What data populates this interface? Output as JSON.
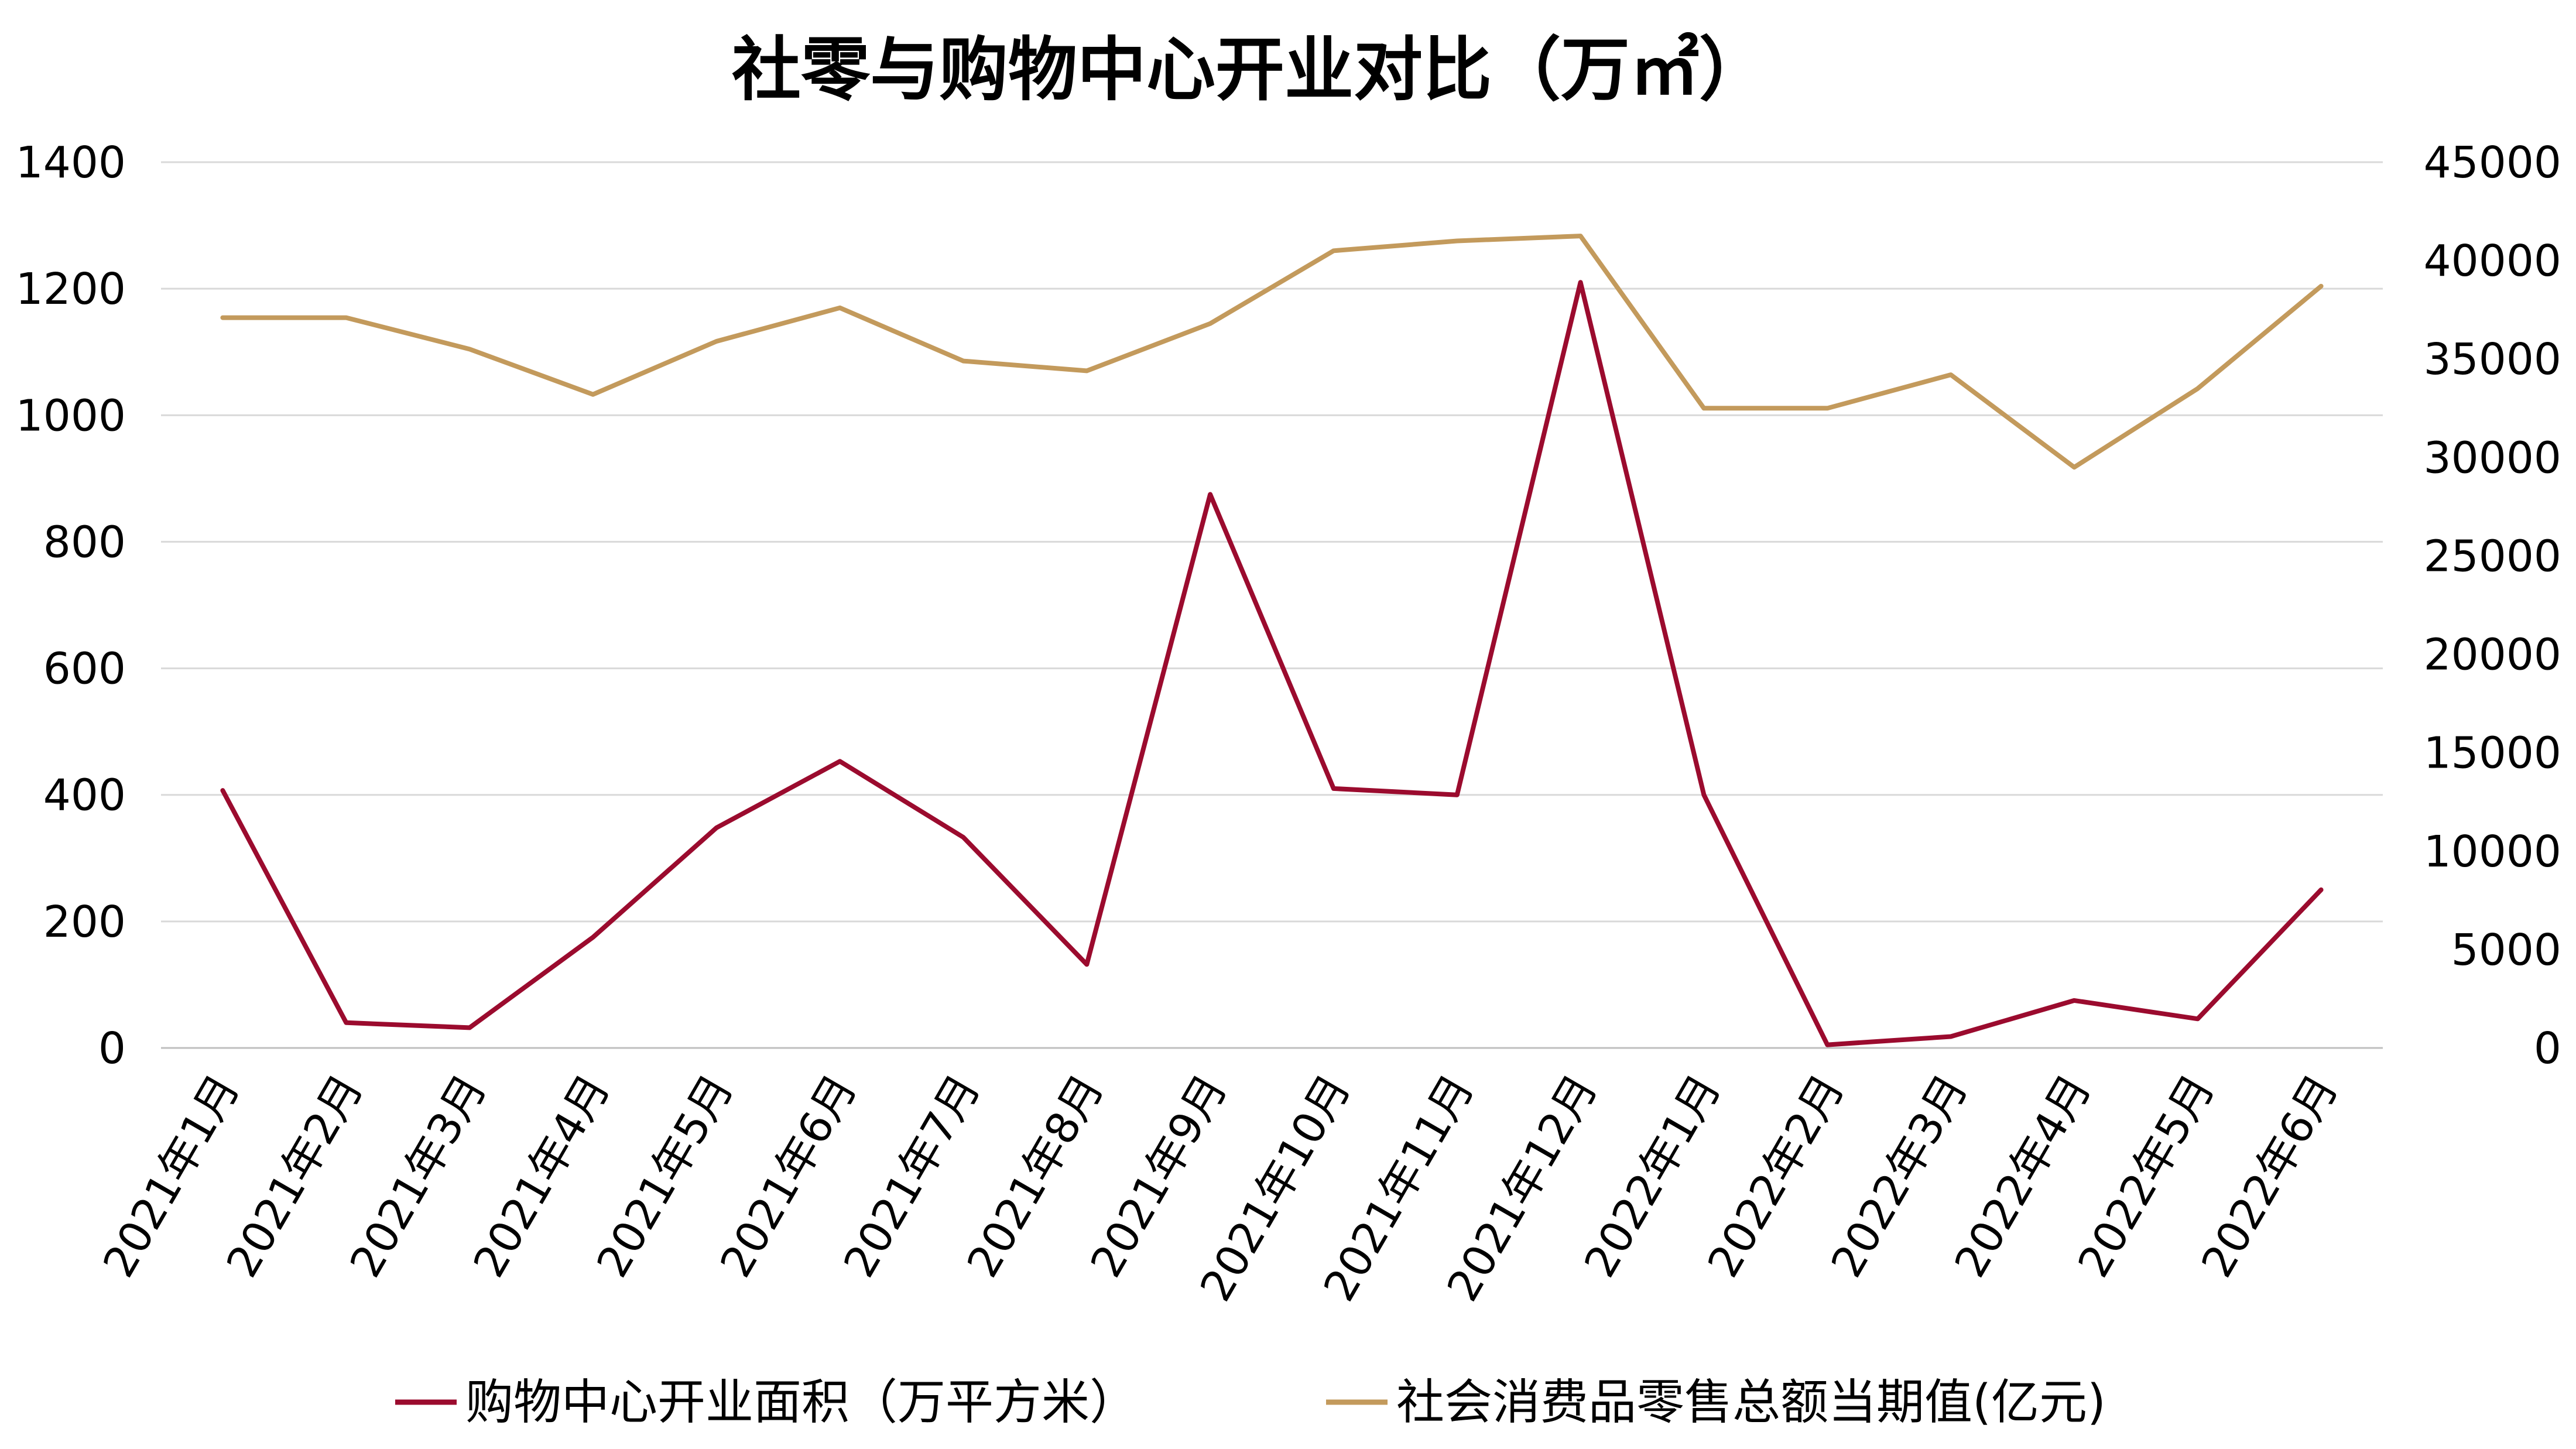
{
  "chart_data": {
    "type": "line",
    "title": "社零与购物中心开业对比（万㎡）",
    "categories": [
      "2021年1月",
      "2021年2月",
      "2021年3月",
      "2021年4月",
      "2021年5月",
      "2021年6月",
      "2021年7月",
      "2021年8月",
      "2021年9月",
      "2021年10月",
      "2021年11月",
      "2021年12月",
      "2022年1月",
      "2022年2月",
      "2022年3月",
      "2022年4月",
      "2022年5月",
      "2022年6月"
    ],
    "series": [
      {
        "name": "购物中心开业面积（万平方米）",
        "axis": "left",
        "color": "#9b0b2e",
        "values": [
          407,
          40,
          32,
          175,
          348,
          453,
          333,
          132,
          875,
          410,
          400,
          1210,
          400,
          5,
          18,
          75,
          46,
          250
        ]
      },
      {
        "name": "社会消费品零售总额当期值(亿元)",
        "axis": "right",
        "color": "#c39a5c",
        "values": [
          37100,
          37100,
          35500,
          33200,
          35900,
          37600,
          34900,
          34400,
          36800,
          40500,
          41000,
          41250,
          32500,
          32500,
          34200,
          29500,
          33500,
          38700
        ]
      }
    ],
    "y_left": {
      "min": 0,
      "max": 1400,
      "ticks": [
        0,
        200,
        400,
        600,
        800,
        1000,
        1200,
        1400
      ]
    },
    "y_right": {
      "min": 0,
      "max": 45000,
      "ticks": [
        0,
        5000,
        10000,
        15000,
        20000,
        25000,
        30000,
        35000,
        40000,
        45000
      ]
    },
    "grid": true,
    "legend": "bottom"
  }
}
